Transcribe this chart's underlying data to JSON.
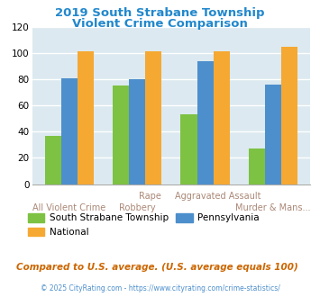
{
  "title_line1": "2019 South Strabane Township",
  "title_line2": "Violent Crime Comparison",
  "title_color": "#2288cc",
  "xlabel_row1": [
    "",
    "Rape",
    "Aggravated Assault",
    ""
  ],
  "xlabel_row2": [
    "All Violent Crime",
    "Robbery",
    "",
    "Murder & Mans..."
  ],
  "local_values": [
    37,
    75,
    53,
    27
  ],
  "state_values": [
    81,
    80,
    94,
    76
  ],
  "national_values": [
    101,
    101,
    101,
    105
  ],
  "local_color": "#7dc242",
  "state_color": "#4d8fcc",
  "national_color": "#f5a832",
  "local_label": "South Strabane Township",
  "state_label": "Pennsylvania",
  "national_label": "National",
  "ylim": [
    0,
    120
  ],
  "yticks": [
    0,
    20,
    40,
    60,
    80,
    100,
    120
  ],
  "bg_color": "#dce9f0",
  "fig_bg": "#ffffff",
  "note": "Compared to U.S. average. (U.S. average equals 100)",
  "note_color": "#cc6600",
  "footer": "© 2025 CityRating.com - https://www.cityrating.com/crime-statistics/",
  "footer_color": "#4d8fcc",
  "xlabel_color": "#aa8877"
}
